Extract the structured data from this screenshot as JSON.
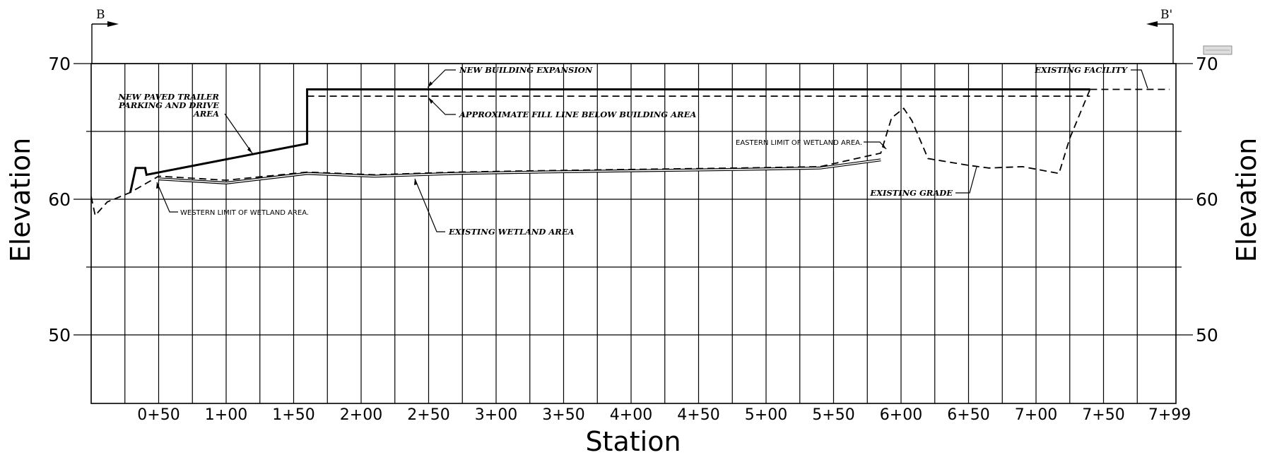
{
  "section": {
    "start_mark": "B",
    "end_mark": "B'"
  },
  "axes": {
    "y_title": "Elevation",
    "x_title": "Station",
    "elevation_ticks": [
      "70",
      "60",
      "50"
    ],
    "station_ticks": [
      "0+50",
      "1+00",
      "1+50",
      "2+00",
      "2+50",
      "3+00",
      "3+50",
      "4+00",
      "4+50",
      "5+00",
      "5+50",
      "6+00",
      "6+50",
      "7+00",
      "7+50",
      "7+99"
    ]
  },
  "annotations": {
    "new_building_expansion": "NEW BUILDING EXPANSION",
    "approximate_fill_line": "APPROXIMATE FILL LINE BELOW BUILDING AREA",
    "new_paved_line1": "NEW PAVED TRAILER",
    "new_paved_line2": "PARKING AND DRIVE",
    "new_paved_line3": "AREA",
    "existing_facility": "EXISTING FACILITY",
    "eastern_limit": "EASTERN LIMIT OF WETLAND AREA.",
    "western_limit": "WESTERN LIMIT OF WETLAND AREA.",
    "existing_wetland": "EXISTING WETLAND AREA",
    "existing_grade": "EXISTING GRADE"
  },
  "chart_data": {
    "type": "line",
    "x_unit": "station (ft)",
    "y_unit": "elevation (ft)",
    "ylim": [
      45,
      70
    ],
    "xlim": [
      0,
      799
    ],
    "series": [
      {
        "name": "NEW BUILDING EXPANSION",
        "style": "solid-bold",
        "points": [
          [
            29,
            60.5
          ],
          [
            33,
            62.3
          ],
          [
            40,
            62.3
          ],
          [
            41,
            61.8
          ],
          [
            160,
            64.1
          ],
          [
            160,
            68.1
          ],
          [
            740,
            68.1
          ]
        ]
      },
      {
        "name": "APPROXIMATE FILL LINE BELOW BUILDING AREA",
        "style": "dashed",
        "points": [
          [
            160,
            67.6
          ],
          [
            740,
            67.6
          ]
        ]
      },
      {
        "name": "EXISTING FACILITY",
        "style": "dashed",
        "points": [
          [
            740,
            68.1
          ],
          [
            799,
            68.1
          ]
        ]
      },
      {
        "name": "EXISTING WETLAND AREA",
        "style": "double-line",
        "points": [
          [
            50,
            61.5
          ],
          [
            100,
            61.2
          ],
          [
            160,
            61.9
          ],
          [
            210,
            61.7
          ],
          [
            270,
            61.9
          ],
          [
            330,
            62.0
          ],
          [
            400,
            62.1
          ],
          [
            480,
            62.2
          ],
          [
            540,
            62.3
          ],
          [
            585,
            62.9
          ]
        ]
      },
      {
        "name": "EXISTING GRADE",
        "style": "dashed",
        "points": [
          [
            0,
            60.2
          ],
          [
            3,
            58.8
          ],
          [
            12,
            59.8
          ],
          [
            29,
            60.5
          ],
          [
            50,
            61.7
          ],
          [
            100,
            61.4
          ],
          [
            160,
            62.0
          ],
          [
            210,
            61.8
          ],
          [
            270,
            62.0
          ],
          [
            330,
            62.1
          ],
          [
            400,
            62.2
          ],
          [
            480,
            62.3
          ],
          [
            540,
            62.4
          ],
          [
            585,
            63.4
          ],
          [
            593,
            66.0
          ],
          [
            602,
            66.7
          ],
          [
            608,
            65.8
          ],
          [
            620,
            63.0
          ],
          [
            650,
            62.5
          ],
          [
            665,
            62.3
          ],
          [
            690,
            62.4
          ],
          [
            717,
            61.9
          ],
          [
            725,
            64.5
          ],
          [
            740,
            68.1
          ]
        ]
      }
    ]
  }
}
